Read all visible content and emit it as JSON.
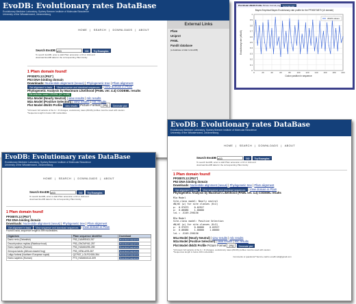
{
  "colors": {
    "banner": "#14407a",
    "found": "#cc0000",
    "button": "#2b4f86",
    "plot_border": "#3b3f8a"
  },
  "common": {
    "title": "EvoDB: Evolutionary rates DataBase",
    "sub1": "Evolutionary Medicine Laboratory, Sydney Brenner Institute of Molecular Bioscience",
    "sub2": "University of the Witwatersrand, Johannesburg",
    "nav": [
      "HOME",
      "SEARCH",
      "DOWNLOADS",
      "ABOUT"
    ],
    "search_label": "Search EvoDB",
    "search_value": "p53",
    "go": "GO",
    "try": "Try Examples",
    "hint1": "To search EvoDB, enter a valid Pfam accession or ID or click and",
    "hint2": "download EvoDB data for the corresponding Pfam family.",
    "found": "1 Pfam domain found!",
    "acc": "PF00870.13 (P53\")",
    "name": "P53 DNA-binding domain",
    "downloads_label": "Downloads:",
    "dl1": "Nucleotide alignment (nexus)",
    "dl2": "Phylogenetic tree",
    "dl3": "Pfam alignment",
    "view_align": "Get alignment in fasta",
    "view_seq": "View sequence and download sequences",
    "view_pfam": "View domain in Pfam",
    "phylo": "Phylogenetic Analysis by Maximum Likelihood (PAML ver. 4.4) CODEML results"
  },
  "w1": {
    "green": "Site-selection model CODEML (M7 vs M8)",
    "m1a": "M1a Model (Nearly Neutral)",
    "m2a": "M2a Model (Positive Selection)",
    "plot": "Plot Model dN/dS Profile",
    "view_results": "view results",
    "mlc": "mlc results",
    "fmt": "Picture Format",
    "fmt_val": "png",
    "gen": "Generate plot",
    "note1": "*All known full variants of the G > R changes, evolutionary rates (dN/dS) profiles must be used with caution.",
    "note2": "*Sequence length is below 100 nucleotides."
  },
  "ext": {
    "title": "External Links",
    "links": [
      "Pfam",
      "Uniprot",
      "PAML",
      "Pandit database"
    ],
    "note": "(a database similar to EvoDB)"
  },
  "plot": {
    "caption_bar": "Plot Model dN/dS Profile",
    "fmt": "Picture Format",
    "fmt_val": "png",
    "gen": "Generate plot",
    "title": "Bayes Empirical Bayes Evolutionary rate profile for the PF00870/870 (UI domain)",
    "legend": "dN/dS values"
  },
  "chart_data": {
    "type": "line",
    "title": "Bayes Empirical Bayes Evolutionary rate profile for the PF00870/870 (UI domain)",
    "xlabel": "Codon position in sequence",
    "ylabel": "Evolutionary rate (dN/dS)",
    "xlim": [
      0,
      200
    ],
    "ylim": [
      0,
      1.0
    ],
    "x_ticks": [
      0,
      20,
      40,
      60,
      80,
      100,
      120,
      140,
      160,
      180,
      200
    ],
    "y_ticks": [
      0,
      0.1,
      0.2,
      0.3,
      0.4,
      0.5,
      0.6,
      0.7,
      0.8,
      0.9,
      1.0
    ],
    "grid": true,
    "legend_position": "top-right",
    "series": [
      {
        "name": "dN/dS values",
        "x": [
          0,
          4,
          8,
          12,
          16,
          20,
          24,
          28,
          32,
          36,
          40,
          44,
          48,
          52,
          56,
          60,
          64,
          68,
          72,
          76,
          80,
          84,
          88,
          92,
          96,
          100,
          104,
          108,
          112,
          116,
          120,
          124,
          128,
          132,
          136,
          140,
          144,
          148,
          152,
          156,
          160,
          164,
          168,
          172,
          176,
          180,
          184,
          188,
          192,
          196,
          200
        ],
        "values": [
          0.55,
          0.9,
          0.45,
          0.8,
          0.3,
          0.85,
          0.5,
          0.35,
          0.9,
          0.4,
          0.75,
          0.3,
          0.95,
          0.45,
          0.6,
          0.25,
          0.88,
          0.4,
          0.7,
          0.3,
          0.92,
          0.5,
          0.35,
          0.8,
          0.45,
          0.9,
          0.3,
          0.65,
          0.4,
          0.85,
          0.3,
          0.75,
          0.45,
          0.9,
          0.35,
          0.6,
          0.3,
          0.88,
          0.4,
          0.7,
          0.35,
          0.85,
          0.45,
          0.3,
          0.9,
          0.4,
          0.75,
          0.35,
          0.8,
          0.5,
          0.6
        ]
      }
    ]
  },
  "w2": {
    "table_hdr": [
      "Organism",
      "Pfam sequence identifier",
      "Download"
    ],
    "count": "Found 6 taxa, sequence length is 599 nucleotides.",
    "rows": [
      [
        "Danio rerio (Zebrafish)",
        "P53_DANRE/63-257",
        "Download sequence"
      ],
      [
        "Oncorhynchus mykiss (Rainbow trout)",
        "P53_ONCMY/61-257",
        "Download sequence"
      ],
      [
        "Homo sapiens (Human)",
        "P53_HUMAN/95-289",
        "Download sequence"
      ],
      [
        "Xenopus laevis (African clawed frog)",
        "P53_XENLA/93-287",
        "Download sequence"
      ],
      [
        "Loligo forbesi (Northern European squid)",
        "Q27937_LOLFO/155-354",
        "Download sequence"
      ],
      [
        "Homo sapiens (Human)",
        "P73_HUMAN/113-309",
        "Download sequence"
      ]
    ]
  },
  "w3": {
    "m1_head": "M1a Model",
    "m1_lines": [
      "Site-class model: Nearly neutral",
      "dN/dS (w) for site classes (K=2)",
      "",
      "p:  0.97073    0.02927",
      "w:  0.06086    1.00000",
      "",
      "lnL = -5249.296156"
    ],
    "m2_head": "M2a Model",
    "m2_lines": [
      "Site-class model: Positive Selection",
      "dN/dS (w) for site classes (K=3)",
      "",
      "p:  0.97073    0.00000    0.02927",
      "w:  0.06086    1.00000    1.00000",
      "",
      "lnL = -5249.296156"
    ],
    "m1a": "M1a Model (Nearly Neutral)",
    "m2a": "M2a Model (Positive Selection)",
    "plot": "Plot Model dN/dS Profile",
    "view_results": "view results",
    "mlc": "mlc results",
    "fmt": "Picture Format",
    "fmt_val": "png",
    "gen": "Generate plot",
    "note1": "*All known full variants of the G > R changes, evolutionary rates (dN/dS) profiles must be used with caution.",
    "note2": "*Sequences length is below 100 nucleotides.",
    "footer": "Comments or questions? Send e-mail to evodb.wits@gmail.com"
  }
}
